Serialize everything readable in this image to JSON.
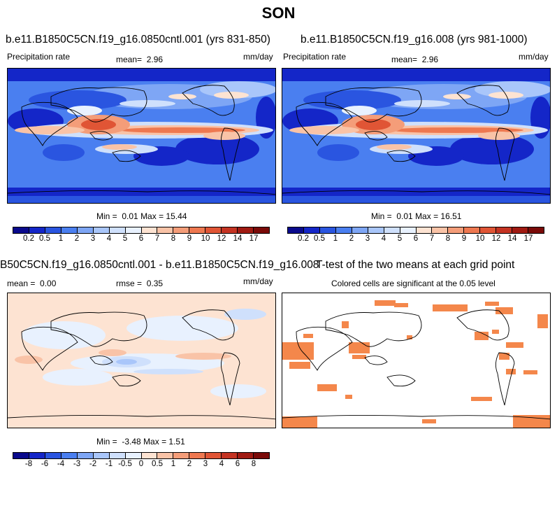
{
  "title": "SON",
  "panel_top_left": {
    "case": "b.e11.B1850C5CN.f19_g16.0850cntl.001 (yrs 831-850)",
    "left_label": "Precipitation rate",
    "mean_label": "mean=",
    "mean_value": "2.96",
    "units": "mm/day",
    "min_label": "Min =",
    "min_value": "0.01",
    "max_label": "Max =",
    "max_value": "15.44"
  },
  "panel_top_right": {
    "case": "b.e11.B1850C5CN.f19_g16.008 (yrs 981-1000)",
    "left_label": "Precipitation rate",
    "mean_label": "mean=",
    "mean_value": "2.96",
    "units": "mm/day",
    "min_label": "Min =",
    "min_value": "0.01",
    "max_label": "Max =",
    "max_value": "16.51"
  },
  "panel_bottom_left": {
    "case": "B50C5CN.f19_g16.0850cntl.001 - b.e11.B1850C5CN.f19_g16.008",
    "mean_label": "mean =",
    "mean_value": "0.00",
    "rmse_label": "rmse =",
    "rmse_value": "0.35",
    "units": "mm/day",
    "min_label": "Min =",
    "min_value": "-3.48",
    "max_label": "Max =",
    "max_value": "1.51"
  },
  "panel_bottom_right": {
    "title": "T-test of the two means at each grid point",
    "subtitle": "Colored cells are significant at the 0.05 level"
  },
  "colorbar_precip": {
    "labels": [
      "0.2",
      "0.5",
      "1",
      "2",
      "3",
      "4",
      "5",
      "6",
      "7",
      "8",
      "9",
      "10",
      "12",
      "14",
      "17"
    ],
    "colors": [
      "#0a0a8c",
      "#1426c8",
      "#2a55e0",
      "#4a7ff0",
      "#7ea6f5",
      "#a9c6fa",
      "#cfe0fc",
      "#e8f1fe",
      "#fde3d2",
      "#f9c3a7",
      "#f49d79",
      "#ee7850",
      "#e05535",
      "#c43322",
      "#a01a12",
      "#7a0a08"
    ]
  },
  "colorbar_diff": {
    "labels": [
      "-8",
      "-6",
      "-4",
      "-3",
      "-2",
      "-1",
      "-0.5",
      "0",
      "0.5",
      "1",
      "2",
      "3",
      "4",
      "6",
      "8"
    ],
    "colors": [
      "#0a0a8c",
      "#1426c8",
      "#2a55e0",
      "#4a7ff0",
      "#7ea6f5",
      "#a9c6fa",
      "#cfe0fc",
      "#e8f1fe",
      "#fde3d2",
      "#f9c3a7",
      "#f49d79",
      "#ee7850",
      "#e05535",
      "#c43322",
      "#a01a12",
      "#7a0a08"
    ]
  }
}
